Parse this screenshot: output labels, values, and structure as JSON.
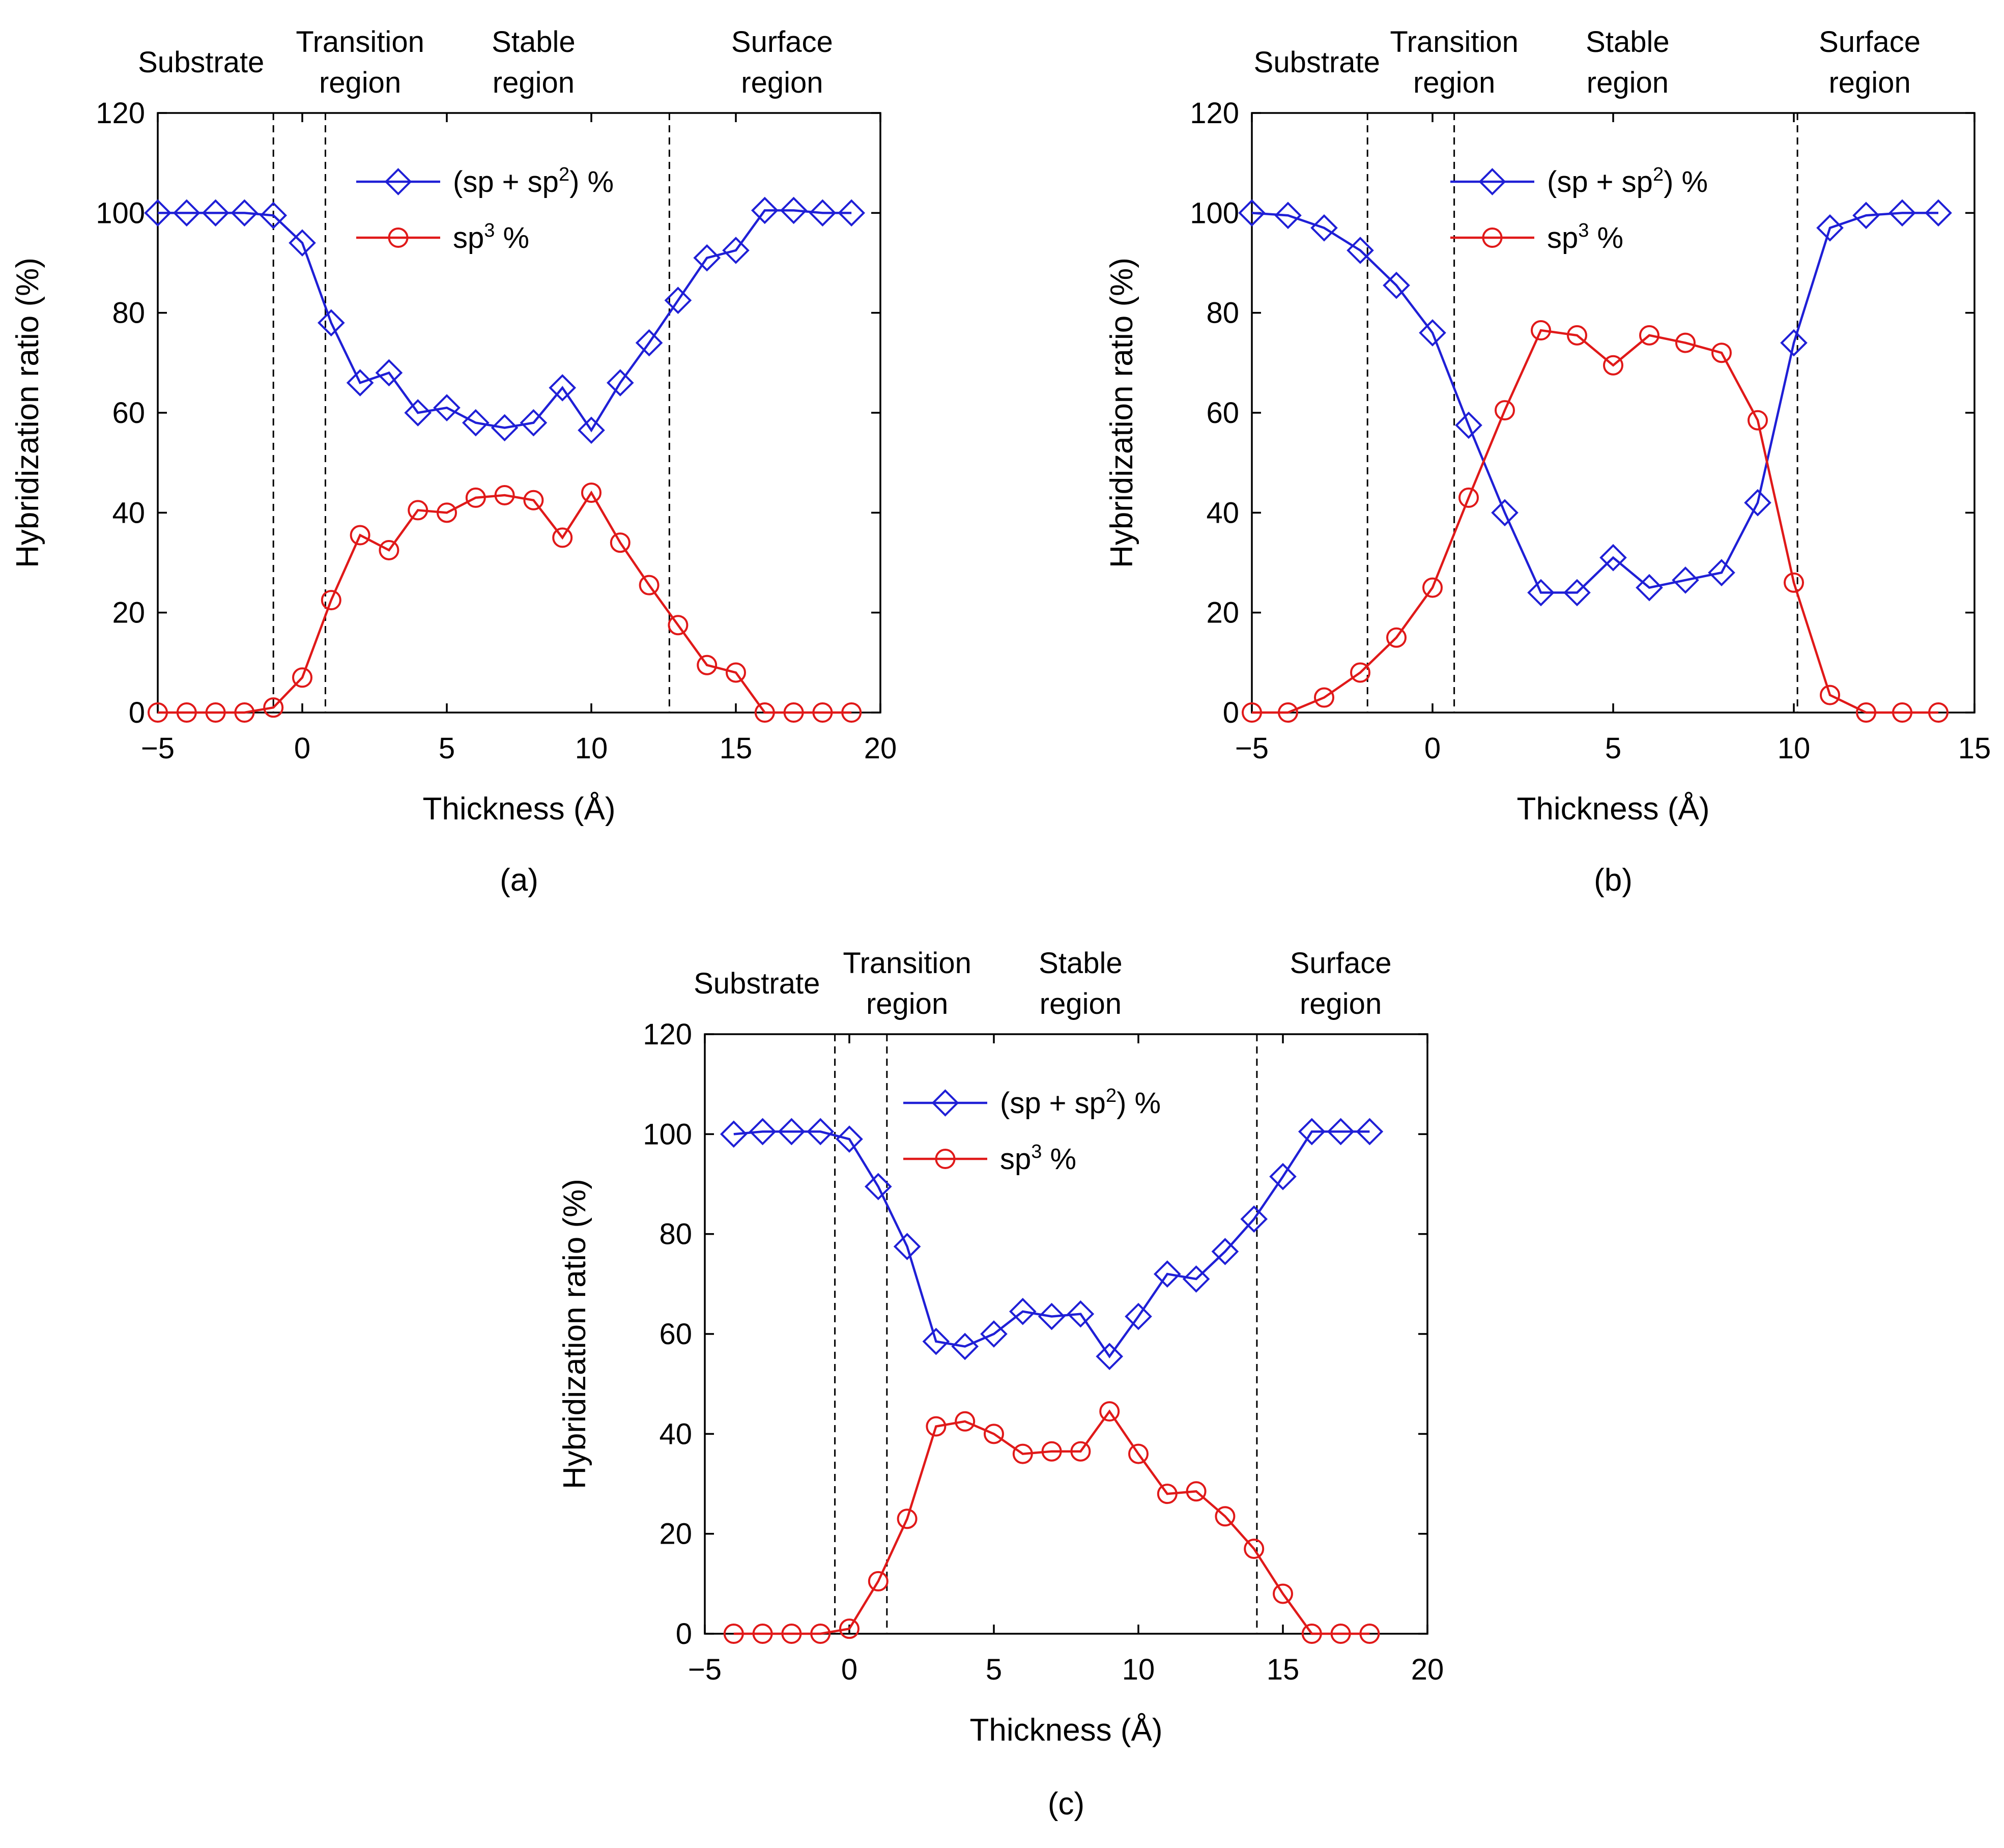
{
  "figure": {
    "panels": [
      "a",
      "b",
      "c"
    ]
  },
  "legend": {
    "series_a_prefix": "(sp + sp",
    "series_a_sup": "2",
    "series_a_suffix": ") %",
    "series_b_prefix": "sp",
    "series_b_sup": "3",
    "series_b_suffix": " %"
  },
  "colors": {
    "sp_sp2": "#1f1fd6",
    "sp3": "#e01919",
    "divider": "#000000"
  },
  "chart_data": [
    {
      "type": "line",
      "panel_label": "(a)",
      "xlabel": "Thickness (Å)",
      "ylabel": "Hybridization ratio (%)",
      "xlim": [
        -5,
        20
      ],
      "ylim": [
        0,
        120
      ],
      "xticks": [
        -5,
        0,
        5,
        10,
        15,
        20
      ],
      "xtick_labels": [
        "−5",
        "0",
        "5",
        "10",
        "15",
        "20"
      ],
      "yticks": [
        0,
        20,
        40,
        60,
        80,
        100,
        120
      ],
      "ytick_labels": [
        "0",
        "20",
        "40",
        "60",
        "80",
        "100",
        "120"
      ],
      "legend_position": "top-center",
      "dividers": [
        -1,
        0.8,
        12.7
      ],
      "regions": [
        {
          "lines": [
            "Substrate"
          ],
          "x": -3.5
        },
        {
          "lines": [
            "Transition",
            "region"
          ],
          "x": 2
        },
        {
          "lines": [
            "Stable",
            "region"
          ],
          "x": 8
        },
        {
          "lines": [
            "Surface",
            "region"
          ],
          "x": 16.6
        }
      ],
      "series": [
        {
          "name": "(sp + sp2) %",
          "marker": "diamond",
          "color": "#1f1fd6",
          "x": [
            -5,
            -4,
            -3,
            -2,
            -1,
            0,
            1,
            2,
            3,
            4,
            5,
            6,
            7,
            8,
            9,
            10,
            11,
            12,
            13,
            14,
            15,
            16,
            17,
            18,
            19
          ],
          "y": [
            100,
            100,
            100,
            100,
            99.5,
            94,
            78,
            66,
            68,
            60,
            61,
            58,
            57,
            58,
            65,
            56.5,
            66,
            74,
            82.5,
            91,
            92.5,
            100.5,
            100.5,
            100,
            100
          ]
        },
        {
          "name": "sp3 %",
          "marker": "circle",
          "color": "#e01919",
          "x": [
            -5,
            -4,
            -3,
            -2,
            -1,
            0,
            1,
            2,
            3,
            4,
            5,
            6,
            7,
            8,
            9,
            10,
            11,
            12,
            13,
            14,
            15,
            16,
            17,
            18,
            19
          ],
          "y": [
            0,
            0,
            0,
            0,
            1,
            7,
            22.5,
            35.5,
            32.5,
            40.5,
            40,
            43,
            43.5,
            42.5,
            35,
            44,
            34,
            25.5,
            17.5,
            9.5,
            8,
            0,
            0,
            0,
            0
          ]
        }
      ]
    },
    {
      "type": "line",
      "panel_label": "(b)",
      "xlabel": "Thickness (Å)",
      "ylabel": "Hybridization ratio (%)",
      "xlim": [
        -5,
        15
      ],
      "ylim": [
        0,
        120
      ],
      "xticks": [
        -5,
        0,
        5,
        10,
        15
      ],
      "xtick_labels": [
        "−5",
        "0",
        "5",
        "10",
        "15"
      ],
      "yticks": [
        0,
        20,
        40,
        60,
        80,
        100,
        120
      ],
      "ytick_labels": [
        "0",
        "20",
        "40",
        "60",
        "80",
        "100",
        "120"
      ],
      "legend_position": "top-center",
      "dividers": [
        -1.8,
        0.6,
        10.1
      ],
      "regions": [
        {
          "lines": [
            "Substrate"
          ],
          "x": -3.2
        },
        {
          "lines": [
            "Transition",
            "region"
          ],
          "x": 0.6
        },
        {
          "lines": [
            "Stable",
            "region"
          ],
          "x": 5.4
        },
        {
          "lines": [
            "Surface",
            "region"
          ],
          "x": 12.1
        }
      ],
      "series": [
        {
          "name": "(sp + sp2) %",
          "marker": "diamond",
          "color": "#1f1fd6",
          "x": [
            -5,
            -4,
            -3,
            -2,
            -1,
            0,
            1,
            2,
            3,
            4,
            5,
            6,
            7,
            8,
            9,
            10,
            11,
            12,
            13,
            14
          ],
          "y": [
            100,
            99.5,
            97,
            92.5,
            85.5,
            76,
            57.5,
            40,
            24,
            24,
            31,
            25,
            26.5,
            28,
            42,
            74,
            97,
            99.5,
            100,
            100
          ]
        },
        {
          "name": "sp3 %",
          "marker": "circle",
          "color": "#e01919",
          "x": [
            -5,
            -4,
            -3,
            -2,
            -1,
            0,
            1,
            2,
            3,
            4,
            5,
            6,
            7,
            8,
            9,
            10,
            11,
            12,
            13,
            14
          ],
          "y": [
            0,
            0,
            3,
            8,
            15,
            25,
            43,
            60.5,
            76.5,
            75.5,
            69.5,
            75.5,
            74,
            72,
            58.5,
            26,
            3.5,
            0,
            0,
            0
          ]
        }
      ]
    },
    {
      "type": "line",
      "panel_label": "(c)",
      "xlabel": "Thickness (Å)",
      "ylabel": "Hybridization ratio (%)",
      "xlim": [
        -5,
        20
      ],
      "ylim": [
        0,
        120
      ],
      "xticks": [
        -5,
        0,
        5,
        10,
        15,
        20
      ],
      "xtick_labels": [
        "−5",
        "0",
        "5",
        "10",
        "15",
        "20"
      ],
      "yticks": [
        0,
        20,
        40,
        60,
        80,
        100,
        120
      ],
      "ytick_labels": [
        "0",
        "20",
        "40",
        "60",
        "80",
        "100",
        "120"
      ],
      "legend_position": "top-center",
      "dividers": [
        -0.5,
        1.3,
        14.1
      ],
      "regions": [
        {
          "lines": [
            "Substrate"
          ],
          "x": -3.2
        },
        {
          "lines": [
            "Transition",
            "region"
          ],
          "x": 2
        },
        {
          "lines": [
            "Stable",
            "region"
          ],
          "x": 8
        },
        {
          "lines": [
            "Surface",
            "region"
          ],
          "x": 17
        }
      ],
      "series": [
        {
          "name": "(sp + sp2) %",
          "marker": "diamond",
          "color": "#1f1fd6",
          "x": [
            -4,
            -3,
            -2,
            -1,
            0,
            1,
            2,
            3,
            4,
            5,
            6,
            7,
            8,
            9,
            10,
            11,
            12,
            13,
            14,
            15,
            16,
            17,
            18
          ],
          "y": [
            100,
            100.5,
            100.5,
            100.5,
            99,
            89.5,
            77.5,
            58.5,
            57.5,
            60,
            64.5,
            63.5,
            64,
            55.5,
            63.5,
            72,
            71,
            76.5,
            83,
            91.5,
            100.5,
            100.5,
            100.5
          ]
        },
        {
          "name": "sp3 %",
          "marker": "circle",
          "color": "#e01919",
          "x": [
            -4,
            -3,
            -2,
            -1,
            0,
            1,
            2,
            3,
            4,
            5,
            6,
            7,
            8,
            9,
            10,
            11,
            12,
            13,
            14,
            15,
            16,
            17,
            18
          ],
          "y": [
            0,
            0,
            0,
            0,
            1,
            10.5,
            23,
            41.5,
            42.5,
            40,
            36,
            36.5,
            36.5,
            44.5,
            36,
            28,
            28.5,
            23.5,
            17,
            8,
            0,
            0,
            0
          ]
        }
      ]
    }
  ]
}
